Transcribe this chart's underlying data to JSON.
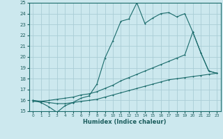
{
  "xlabel": "Humidex (Indice chaleur)",
  "bg_color": "#cce8ee",
  "grid_color": "#aacdd6",
  "line_color": "#1a6b6b",
  "text_color": "#1a5c5c",
  "xlim": [
    -0.5,
    23.5
  ],
  "ylim": [
    15,
    25
  ],
  "xticks": [
    0,
    1,
    2,
    3,
    4,
    5,
    6,
    7,
    8,
    9,
    10,
    11,
    12,
    13,
    14,
    15,
    16,
    17,
    18,
    19,
    20,
    21,
    22,
    23
  ],
  "yticks": [
    15,
    16,
    17,
    18,
    19,
    20,
    21,
    22,
    23,
    24,
    25
  ],
  "line1_x": [
    0,
    1,
    2,
    3,
    4,
    5,
    6,
    7,
    8,
    9,
    10,
    11,
    12,
    13,
    14,
    15,
    16,
    17,
    18,
    19,
    20,
    21,
    22,
    23
  ],
  "line1_y": [
    16.0,
    15.8,
    15.4,
    14.9,
    15.5,
    15.8,
    16.2,
    16.4,
    17.5,
    19.9,
    21.5,
    23.3,
    23.5,
    25.0,
    23.1,
    23.6,
    24.0,
    24.1,
    23.7,
    24.0,
    22.3,
    20.4,
    18.7,
    18.5
  ],
  "line2_x": [
    0,
    1,
    2,
    3,
    4,
    5,
    6,
    7,
    8,
    9,
    10,
    11,
    12,
    13,
    14,
    15,
    16,
    17,
    18,
    19,
    20,
    21,
    22,
    23
  ],
  "line2_y": [
    15.9,
    15.9,
    16.0,
    16.1,
    16.2,
    16.3,
    16.5,
    16.6,
    16.8,
    17.1,
    17.4,
    17.8,
    18.1,
    18.4,
    18.7,
    19.0,
    19.3,
    19.6,
    19.9,
    20.2,
    22.3,
    20.4,
    18.7,
    18.5
  ],
  "line3_x": [
    0,
    1,
    2,
    3,
    4,
    5,
    6,
    7,
    8,
    9,
    10,
    11,
    12,
    13,
    14,
    15,
    16,
    17,
    18,
    19,
    20,
    21,
    22,
    23
  ],
  "line3_y": [
    16.0,
    15.9,
    15.8,
    15.7,
    15.7,
    15.8,
    15.9,
    16.0,
    16.1,
    16.3,
    16.5,
    16.7,
    16.9,
    17.1,
    17.3,
    17.5,
    17.7,
    17.9,
    18.0,
    18.1,
    18.2,
    18.3,
    18.4,
    18.5
  ]
}
